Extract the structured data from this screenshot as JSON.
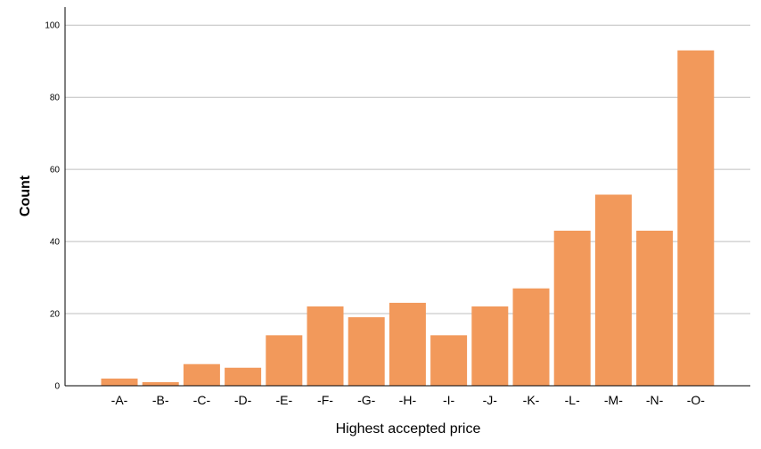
{
  "chart_data": {
    "type": "bar",
    "categories": [
      "-A-",
      "-B-",
      "-C-",
      "-D-",
      "-E-",
      "-F-",
      "-G-",
      "-H-",
      "-I-",
      "-J-",
      "-K-",
      "-L-",
      "-M-",
      "-N-",
      "-O-"
    ],
    "values": [
      2,
      1,
      6,
      5,
      14,
      22,
      19,
      23,
      14,
      22,
      27,
      43,
      53,
      43,
      93
    ],
    "xlabel": "Highest accepted price",
    "ylabel": "Count",
    "ylim": [
      0,
      105
    ],
    "yticks": [
      0,
      20,
      40,
      60,
      80,
      100
    ],
    "grid": true,
    "bar_color": "#f2995b",
    "grid_color": "#bfbfbf"
  }
}
